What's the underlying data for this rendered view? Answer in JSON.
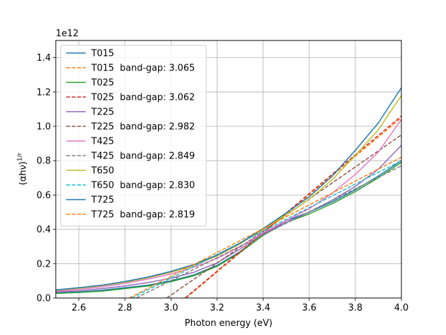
{
  "chart_data": {
    "type": "line",
    "xlabel": "Photon energy (eV)",
    "ylabel": "(αhν)^{1/r}",
    "ylabel_main": "(αhν)",
    "ylabel_sup": "1/r",
    "y_offset_label": "1e12",
    "xlim": [
      2.5,
      4.0
    ],
    "ylim": [
      0,
      1.5
    ],
    "x_ticks": [
      "2.6",
      "2.8",
      "3.0",
      "3.2",
      "3.4",
      "3.6",
      "3.8",
      "4.0"
    ],
    "y_ticks": [
      "0.0",
      "0.2",
      "0.4",
      "0.6",
      "0.8",
      "1.0",
      "1.2",
      "1.4"
    ],
    "grid": true,
    "legend_position": "upper-left",
    "series": [
      {
        "name": "T015",
        "color": "#1f77b4",
        "style": "solid",
        "x": [
          2.5,
          2.6,
          2.7,
          2.8,
          2.9,
          3.0,
          3.1,
          3.2,
          3.3,
          3.4,
          3.5,
          3.6,
          3.7,
          3.8,
          3.9,
          4.0
        ],
        "y": [
          0.03,
          0.035,
          0.045,
          0.06,
          0.075,
          0.1,
          0.135,
          0.19,
          0.27,
          0.37,
          0.45,
          0.5,
          0.56,
          0.63,
          0.71,
          0.8
        ]
      },
      {
        "name": "T015  band-gap: 3.065",
        "color": "#ff7f0e",
        "style": "dashed",
        "x": [
          3.065,
          4.0
        ],
        "y": [
          0.0,
          1.05
        ]
      },
      {
        "name": "T025",
        "color": "#2ca02c",
        "style": "solid",
        "x": [
          2.5,
          2.6,
          2.7,
          2.8,
          2.9,
          3.0,
          3.1,
          3.2,
          3.3,
          3.4,
          3.5,
          3.6,
          3.7,
          3.8,
          3.9,
          4.0
        ],
        "y": [
          0.027,
          0.032,
          0.04,
          0.055,
          0.07,
          0.095,
          0.13,
          0.185,
          0.265,
          0.365,
          0.44,
          0.49,
          0.55,
          0.62,
          0.7,
          0.79
        ]
      },
      {
        "name": "T025  band-gap: 3.062",
        "color": "#d62728",
        "style": "dashed",
        "x": [
          3.062,
          4.0
        ],
        "y": [
          0.0,
          1.06
        ]
      },
      {
        "name": "T225",
        "color": "#9467bd",
        "style": "solid",
        "x": [
          2.5,
          2.6,
          2.7,
          2.8,
          2.9,
          3.0,
          3.1,
          3.2,
          3.3,
          3.4,
          3.5,
          3.6,
          3.7,
          3.8,
          3.9,
          4.0
        ],
        "y": [
          0.035,
          0.042,
          0.055,
          0.07,
          0.09,
          0.115,
          0.15,
          0.205,
          0.285,
          0.375,
          0.44,
          0.5,
          0.57,
          0.65,
          0.75,
          0.89
        ]
      },
      {
        "name": "T225  band-gap: 2.982",
        "color": "#8c564b",
        "style": "dashed",
        "x": [
          2.982,
          4.0
        ],
        "y": [
          0.0,
          0.95
        ]
      },
      {
        "name": "T425",
        "color": "#e377c2",
        "style": "solid",
        "x": [
          2.5,
          2.6,
          2.7,
          2.8,
          2.9,
          3.0,
          3.1,
          3.2,
          3.3,
          3.4,
          3.5,
          3.6,
          3.7,
          3.8,
          3.9,
          4.0
        ],
        "y": [
          0.04,
          0.05,
          0.065,
          0.085,
          0.11,
          0.14,
          0.18,
          0.23,
          0.3,
          0.38,
          0.45,
          0.52,
          0.61,
          0.72,
          0.85,
          1.04
        ]
      },
      {
        "name": "T425  band-gap: 2.849",
        "color": "#7f7f7f",
        "style": "dashed",
        "x": [
          2.849,
          4.0
        ],
        "y": [
          0.0,
          0.77
        ]
      },
      {
        "name": "T650",
        "color": "#bcbd22",
        "style": "solid",
        "x": [
          2.5,
          2.6,
          2.7,
          2.8,
          2.9,
          3.0,
          3.1,
          3.2,
          3.3,
          3.4,
          3.5,
          3.6,
          3.7,
          3.8,
          3.9,
          4.0
        ],
        "y": [
          0.045,
          0.057,
          0.072,
          0.092,
          0.118,
          0.15,
          0.19,
          0.245,
          0.315,
          0.4,
          0.485,
          0.575,
          0.69,
          0.83,
          0.98,
          1.18
        ]
      },
      {
        "name": "T650  band-gap: 2.830",
        "color": "#17becf",
        "style": "dashed",
        "x": [
          2.83,
          4.0
        ],
        "y": [
          0.0,
          0.8
        ]
      },
      {
        "name": "T725",
        "color": "#1f77b4",
        "style": "solid",
        "x": [
          2.5,
          2.6,
          2.7,
          2.8,
          2.9,
          3.0,
          3.1,
          3.2,
          3.3,
          3.4,
          3.5,
          3.6,
          3.7,
          3.8,
          3.9,
          4.0
        ],
        "y": [
          0.047,
          0.06,
          0.075,
          0.096,
          0.122,
          0.155,
          0.195,
          0.25,
          0.32,
          0.405,
          0.495,
          0.59,
          0.71,
          0.86,
          1.02,
          1.225
        ]
      },
      {
        "name": "T725  band-gap: 2.819",
        "color": "#ff7f0e",
        "style": "dashed",
        "x": [
          2.819,
          4.0
        ],
        "y": [
          0.0,
          0.82
        ]
      }
    ]
  }
}
